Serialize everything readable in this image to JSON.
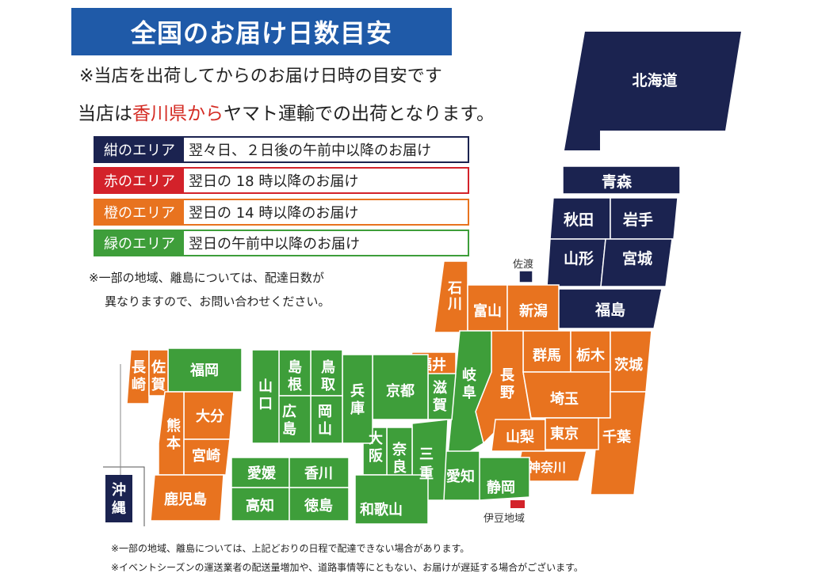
{
  "title": "全国のお届け日数目安",
  "note_shipping": "※当店を出荷してからのお届け日時の目安です",
  "note_origin": {
    "pre": "当店は",
    "highlight": "香川県から",
    "post": "ヤマト運輸での出荷となります。"
  },
  "legend": [
    {
      "area": "紺のエリア",
      "desc": "翌々日、２日後の午前中以降のお届け",
      "color": "#1b2350"
    },
    {
      "area": "赤のエリア",
      "desc": "翌日の 18 時以降のお届け",
      "color": "#d3222a"
    },
    {
      "area": "橙のエリア",
      "desc": "翌日の 14 時以降のお届け",
      "color": "#e8731f"
    },
    {
      "area": "緑のエリア",
      "desc": "翌日の午前中以降のお届け",
      "color": "#3e9e3a"
    }
  ],
  "island_note": {
    "line1": "※一部の地域、離島については、配達日数が",
    "line2": "異なりますので、お問い合わせください。"
  },
  "footer": {
    "line1": "※一部の地域、離島については、上記どおりの日程で配達できない場合があります。",
    "line2": "※イベントシーズンの運送業者の配送量増加や、道路事情等にともない、お届けが遅延する場合がございます。"
  },
  "map_labels": {
    "sado": "佐渡",
    "izu": "伊豆地域"
  },
  "regions": {
    "hokkaido": "北海道",
    "aomori": "青森",
    "akita": "秋田",
    "iwate": "岩手",
    "yamagata": "山形",
    "miyagi": "宮城",
    "fukushima": "福島",
    "niigata": "新潟",
    "toyama": "富山",
    "ishikawa": "石川",
    "fukui": "福井",
    "gunma": "群馬",
    "tochigi": "栃木",
    "ibaraki": "茨城",
    "nagano": "長野",
    "saitama": "埼玉",
    "chiba": "千葉",
    "yamanashi": "山梨",
    "tokyo": "東京",
    "kanagawa": "神奈川",
    "gifu": "岐阜",
    "shizuoka": "静岡",
    "aichi": "愛知",
    "mie": "三重",
    "shiga": "滋賀",
    "kyoto": "京都",
    "nara": "奈良",
    "wakayama": "和歌山",
    "osaka": "大阪",
    "hyogo": "兵庫",
    "tottori": "鳥取",
    "shimane": "島根",
    "okayama": "岡山",
    "hiroshima": "広島",
    "yamaguchi": "山口",
    "ehime": "愛媛",
    "kagawa": "香川",
    "kochi": "高知",
    "tokushima": "徳島",
    "fukuoka": "福岡",
    "saga": "佐賀",
    "nagasaki": "長崎",
    "oita": "大分",
    "kumamoto": "熊本",
    "miyazaki": "宮崎",
    "kagoshima": "鹿児島",
    "okinawa": "沖縄"
  }
}
